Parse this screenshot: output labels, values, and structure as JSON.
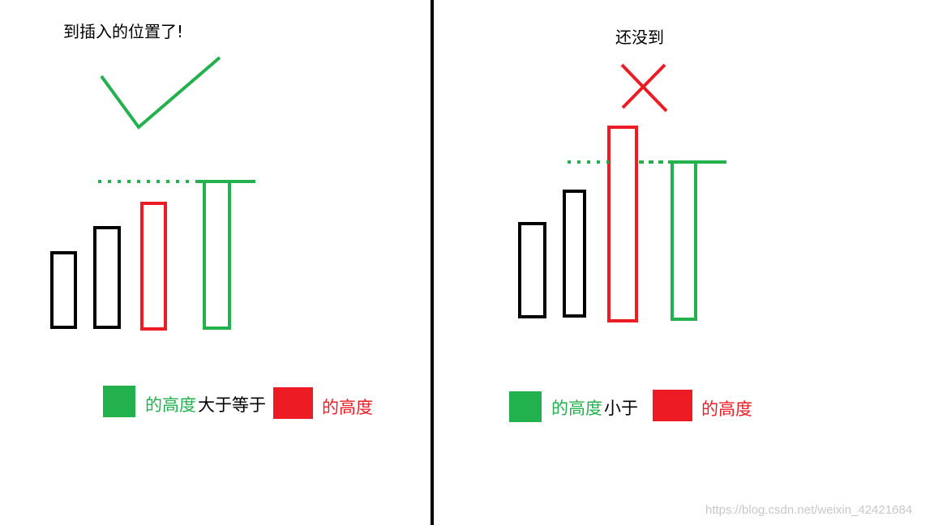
{
  "left_panel": {
    "title": "到插入的位置了!",
    "status_icon": "check-icon",
    "legend": {
      "green_text": "的高度",
      "relation_text": "大于等于",
      "red_text": "的高度"
    }
  },
  "right_panel": {
    "title": "还没到",
    "status_icon": "cross-icon",
    "legend": {
      "green_text": "的高度",
      "relation_text": " 小于",
      "red_text": "的高度"
    }
  },
  "watermark": "https://blog.csdn.net/weixin_42421684",
  "colors": {
    "green": "#22b14c",
    "red": "#ed1c24",
    "black": "#000000",
    "watermark": "#c8c8c8"
  }
}
